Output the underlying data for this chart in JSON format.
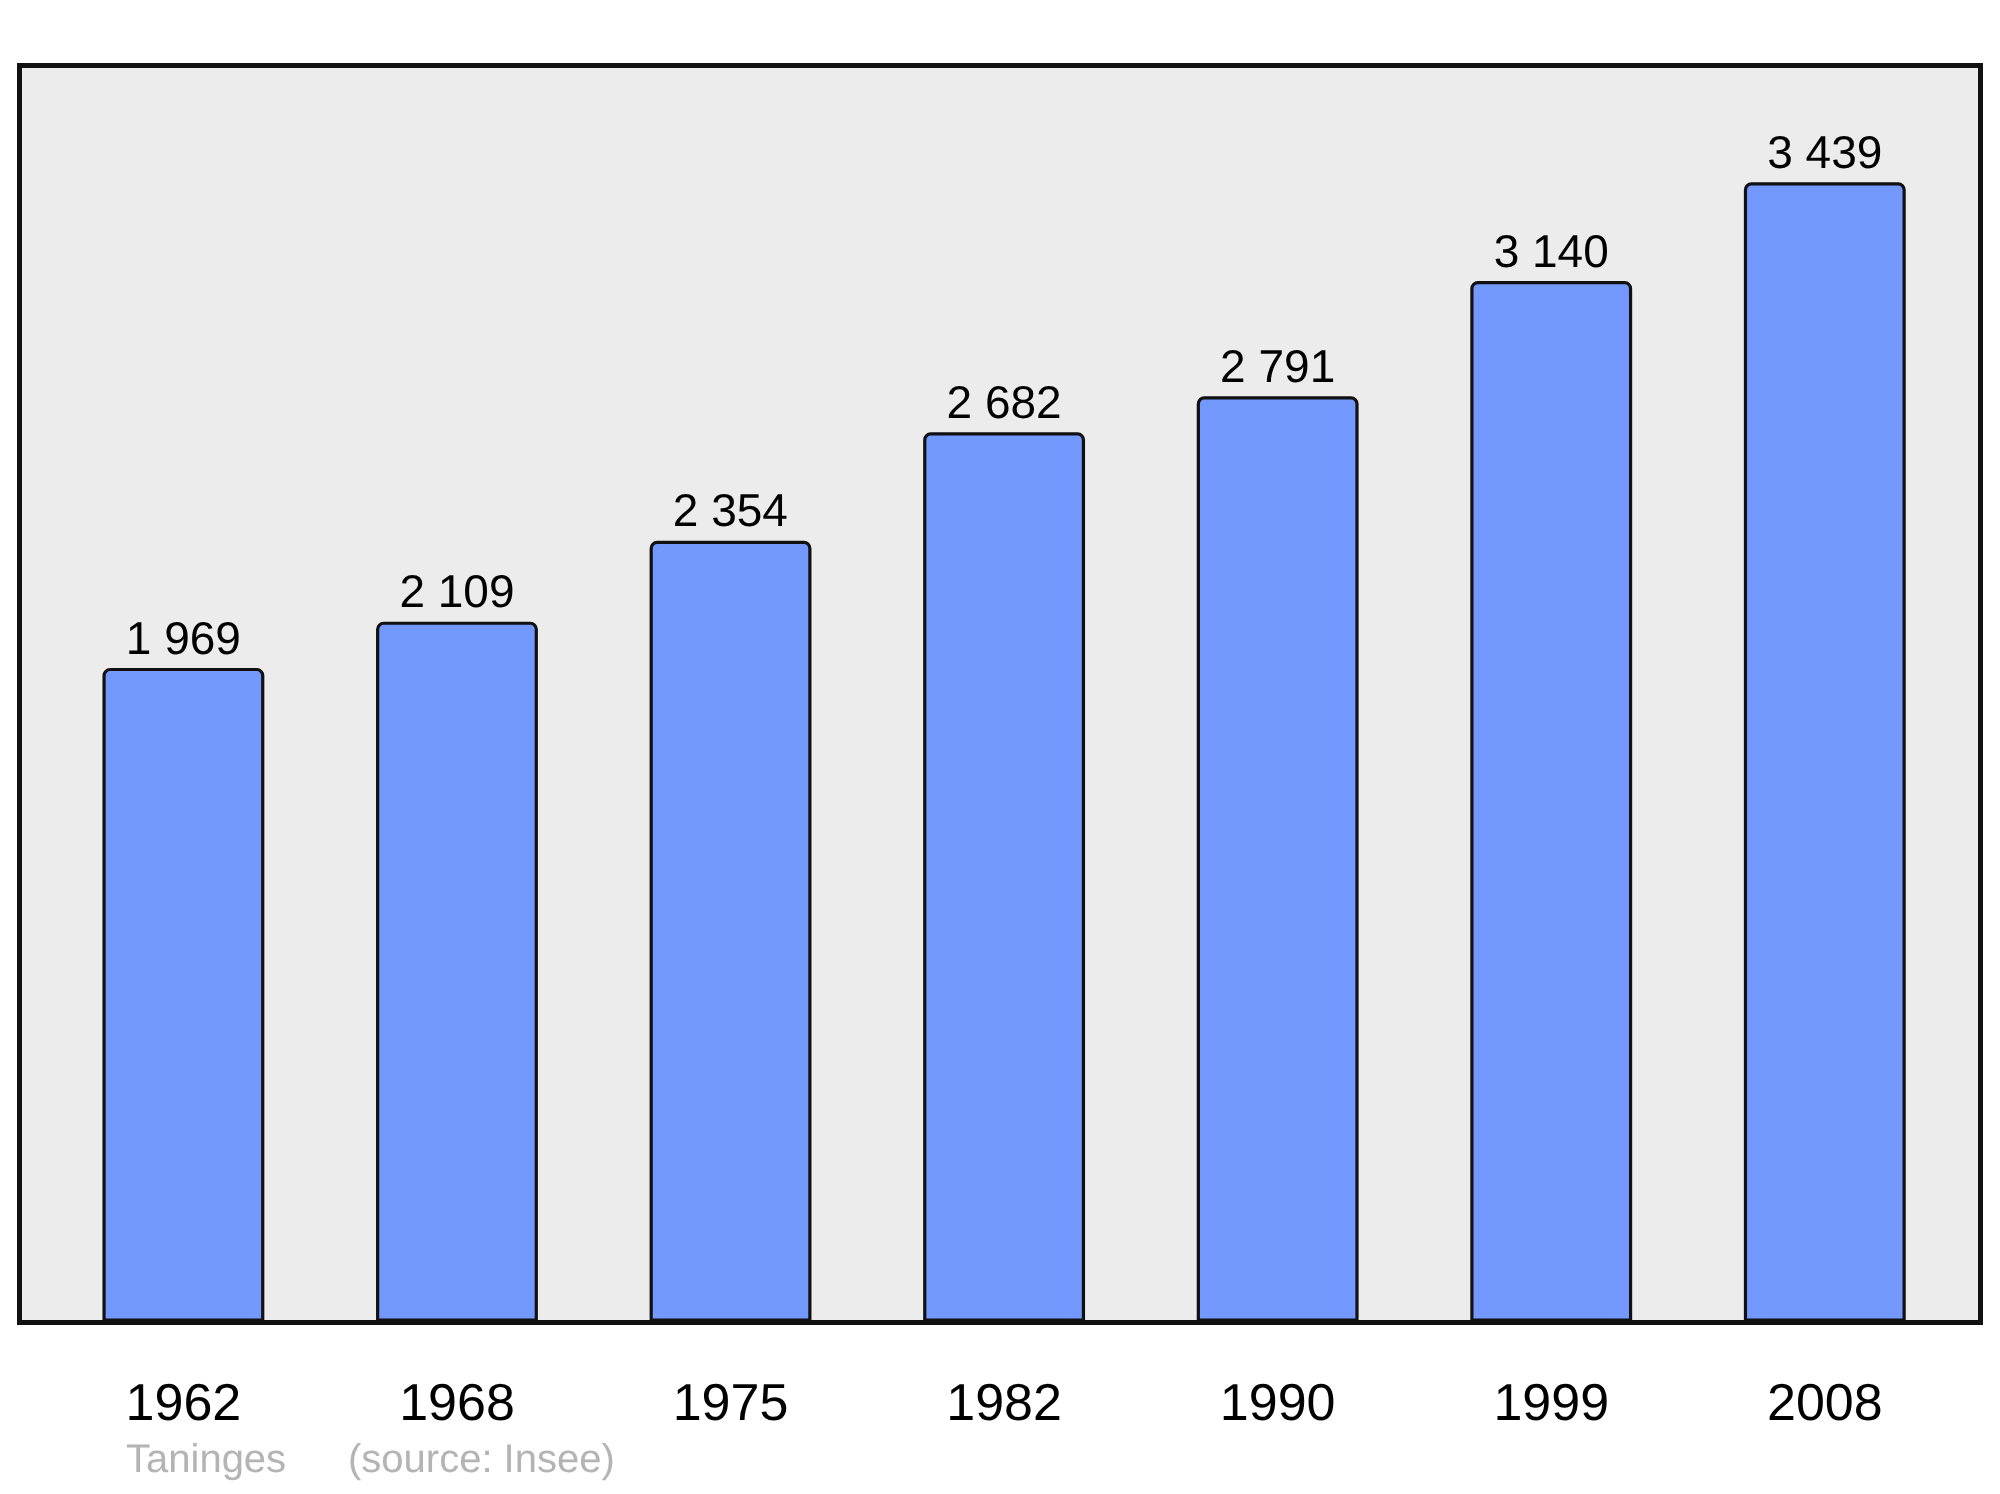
{
  "chart_data": {
    "type": "bar",
    "categories": [
      "1962",
      "1968",
      "1975",
      "1982",
      "1990",
      "1999",
      "2008"
    ],
    "values": [
      1969,
      2109,
      2354,
      2682,
      2791,
      3140,
      3439
    ],
    "value_labels": [
      "1 969",
      "2 109",
      "2 354",
      "2 682",
      "2 791",
      "3 140",
      "3 439"
    ],
    "color": "#7399ff",
    "annotations": [
      "Taninges",
      "(source: Insee)"
    ],
    "tick_labels": "x",
    "grid": false,
    "legend": false
  }
}
